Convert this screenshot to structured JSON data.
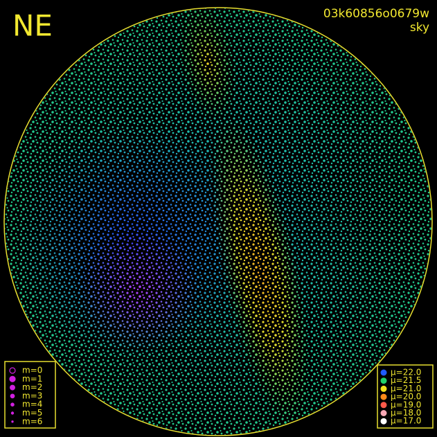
{
  "header": {
    "label": "NE",
    "id": "03k60856o0679w",
    "subtitle": "sky"
  },
  "legend_magnitude": {
    "entries": [
      "m=0",
      "m=1",
      "m=2",
      "m=3",
      "m=4",
      "m=5",
      "m=6"
    ]
  },
  "legend_brightness": {
    "entries": [
      {
        "label": "μ=22.0",
        "color": "#1f5bff"
      },
      {
        "label": "μ=21.5",
        "color": "#22d06a"
      },
      {
        "label": "μ=21.0",
        "color": "#f2e01c"
      },
      {
        "label": "μ=20.0",
        "color": "#ff8a1a"
      },
      {
        "label": "μ=19.0",
        "color": "#ff5a4a"
      },
      {
        "label": "μ=18.0",
        "color": "#f5a6b4"
      },
      {
        "label": "μ=17.0",
        "color": "#ffffff"
      }
    ]
  }
}
